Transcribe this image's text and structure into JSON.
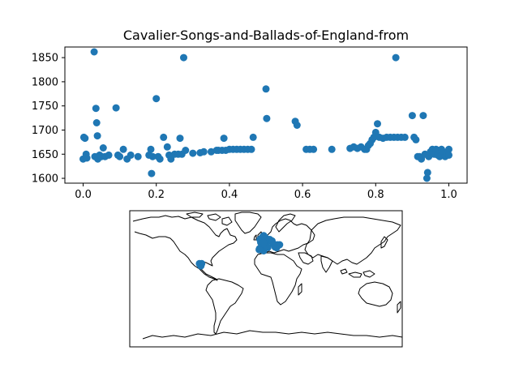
{
  "chart_data": [
    {
      "type": "scatter",
      "title": "Cavalier-Songs-and-Ballads-of-England-from",
      "xlabel": "",
      "ylabel": "",
      "xlim": [
        -0.05,
        1.05
      ],
      "ylim": [
        1590,
        1872
      ],
      "xticks": [
        {
          "value": 0.0,
          "label": "0.0"
        },
        {
          "value": 0.2,
          "label": "0.2"
        },
        {
          "value": 0.4,
          "label": "0.4"
        },
        {
          "value": 0.6,
          "label": "0.6"
        },
        {
          "value": 0.8,
          "label": "0.8"
        },
        {
          "value": 1.0,
          "label": "1.0"
        }
      ],
      "yticks": [
        {
          "value": 1600,
          "label": "1600"
        },
        {
          "value": 1650,
          "label": "1650"
        },
        {
          "value": 1700,
          "label": "1700"
        },
        {
          "value": 1750,
          "label": "1750"
        },
        {
          "value": 1800,
          "label": "1800"
        },
        {
          "value": 1850,
          "label": "1850"
        }
      ],
      "grid": false,
      "color": "#1f77b4",
      "points": [
        [
          0.0,
          1640
        ],
        [
          0.002,
          1685
        ],
        [
          0.005,
          1683
        ],
        [
          0.008,
          1650
        ],
        [
          0.01,
          1642
        ],
        [
          0.03,
          1862
        ],
        [
          0.032,
          1645
        ],
        [
          0.035,
          1745
        ],
        [
          0.037,
          1715
        ],
        [
          0.039,
          1688
        ],
        [
          0.04,
          1640
        ],
        [
          0.045,
          1648
        ],
        [
          0.05,
          1645
        ],
        [
          0.055,
          1663
        ],
        [
          0.06,
          1645
        ],
        [
          0.07,
          1648
        ],
        [
          0.09,
          1746
        ],
        [
          0.095,
          1648
        ],
        [
          0.1,
          1645
        ],
        [
          0.11,
          1660
        ],
        [
          0.12,
          1640
        ],
        [
          0.13,
          1648
        ],
        [
          0.15,
          1645
        ],
        [
          0.18,
          1648
        ],
        [
          0.185,
          1660
        ],
        [
          0.187,
          1610
        ],
        [
          0.19,
          1645
        ],
        [
          0.2,
          1765
        ],
        [
          0.205,
          1645
        ],
        [
          0.21,
          1640
        ],
        [
          0.22,
          1685
        ],
        [
          0.23,
          1665
        ],
        [
          0.235,
          1648
        ],
        [
          0.24,
          1640
        ],
        [
          0.25,
          1650
        ],
        [
          0.26,
          1650
        ],
        [
          0.265,
          1683
        ],
        [
          0.27,
          1650
        ],
        [
          0.275,
          1850
        ],
        [
          0.28,
          1658
        ],
        [
          0.3,
          1652
        ],
        [
          0.32,
          1653
        ],
        [
          0.33,
          1655
        ],
        [
          0.35,
          1655
        ],
        [
          0.365,
          1658
        ],
        [
          0.37,
          1658
        ],
        [
          0.38,
          1658
        ],
        [
          0.385,
          1683
        ],
        [
          0.39,
          1658
        ],
        [
          0.4,
          1660
        ],
        [
          0.41,
          1660
        ],
        [
          0.42,
          1660
        ],
        [
          0.43,
          1660
        ],
        [
          0.44,
          1660
        ],
        [
          0.45,
          1660
        ],
        [
          0.46,
          1660
        ],
        [
          0.465,
          1685
        ],
        [
          0.5,
          1785
        ],
        [
          0.502,
          1724
        ],
        [
          0.58,
          1718
        ],
        [
          0.585,
          1710
        ],
        [
          0.61,
          1660
        ],
        [
          0.62,
          1660
        ],
        [
          0.63,
          1660
        ],
        [
          0.68,
          1660
        ],
        [
          0.73,
          1662
        ],
        [
          0.74,
          1665
        ],
        [
          0.75,
          1662
        ],
        [
          0.76,
          1665
        ],
        [
          0.77,
          1660
        ],
        [
          0.775,
          1660
        ],
        [
          0.78,
          1668
        ],
        [
          0.785,
          1672
        ],
        [
          0.79,
          1680
        ],
        [
          0.795,
          1685
        ],
        [
          0.8,
          1695
        ],
        [
          0.81,
          1685
        ],
        [
          0.82,
          1683
        ],
        [
          0.805,
          1713
        ],
        [
          0.83,
          1685
        ],
        [
          0.84,
          1685
        ],
        [
          0.85,
          1685
        ],
        [
          0.855,
          1850
        ],
        [
          0.86,
          1685
        ],
        [
          0.87,
          1685
        ],
        [
          0.88,
          1685
        ],
        [
          0.9,
          1730
        ],
        [
          0.905,
          1685
        ],
        [
          0.91,
          1680
        ],
        [
          0.915,
          1645
        ],
        [
          0.92,
          1645
        ],
        [
          0.925,
          1640
        ],
        [
          0.93,
          1730
        ],
        [
          0.935,
          1650
        ],
        [
          0.94,
          1600
        ],
        [
          0.942,
          1612
        ],
        [
          0.945,
          1645
        ],
        [
          0.95,
          1655
        ],
        [
          0.955,
          1660
        ],
        [
          0.96,
          1650
        ],
        [
          0.965,
          1660
        ],
        [
          0.97,
          1648
        ],
        [
          0.975,
          1645
        ],
        [
          0.98,
          1660
        ],
        [
          0.985,
          1655
        ],
        [
          0.99,
          1645
        ],
        [
          0.995,
          1650
        ],
        [
          1.0,
          1660
        ],
        [
          1.0,
          1648
        ]
      ]
    },
    {
      "type": "map",
      "projection": "plate-carree",
      "color": "#1f77b4",
      "points": [
        [
          -4.0,
          52.5
        ],
        [
          -3.0,
          53.0
        ],
        [
          -2.0,
          52.0
        ],
        [
          -1.0,
          51.5
        ],
        [
          -1.5,
          53.5
        ],
        [
          -2.5,
          54.0
        ],
        [
          -3.5,
          51.0
        ],
        [
          -0.5,
          52.5
        ],
        [
          0.0,
          51.5
        ],
        [
          -1.0,
          50.5
        ],
        [
          -2.0,
          50.5
        ],
        [
          -4.0,
          50.5
        ],
        [
          -5.0,
          51.0
        ],
        [
          -3.0,
          55.0
        ],
        [
          -2.0,
          55.5
        ],
        [
          -1.0,
          54.5
        ],
        [
          0.5,
          53.0
        ],
        [
          1.0,
          52.0
        ],
        [
          -6.0,
          52.0
        ],
        [
          -7.0,
          53.0
        ],
        [
          -8.0,
          52.0
        ],
        [
          -3.0,
          57.0
        ],
        [
          -4.0,
          56.0
        ],
        [
          2.0,
          49.0
        ],
        [
          5.0,
          52.0
        ],
        [
          4.0,
          50.5
        ],
        [
          8.0,
          50.0
        ],
        [
          10.0,
          46.0
        ],
        [
          12.0,
          42.0
        ],
        [
          15.0,
          45.0
        ],
        [
          14.0,
          41.0
        ],
        [
          -5.0,
          40.0
        ],
        [
          -3.0,
          37.0
        ],
        [
          -8.5,
          40.0
        ],
        [
          -9.0,
          38.5
        ],
        [
          2.5,
          41.5
        ],
        [
          -7.0,
          48.0
        ],
        [
          -3.0,
          48.0
        ],
        [
          18.0,
          45.0
        ],
        [
          -88.0,
          20.0
        ],
        [
          -87.0,
          18.5
        ],
        [
          -85.0,
          20.0
        ],
        [
          -86.0,
          17.0
        ]
      ]
    }
  ]
}
